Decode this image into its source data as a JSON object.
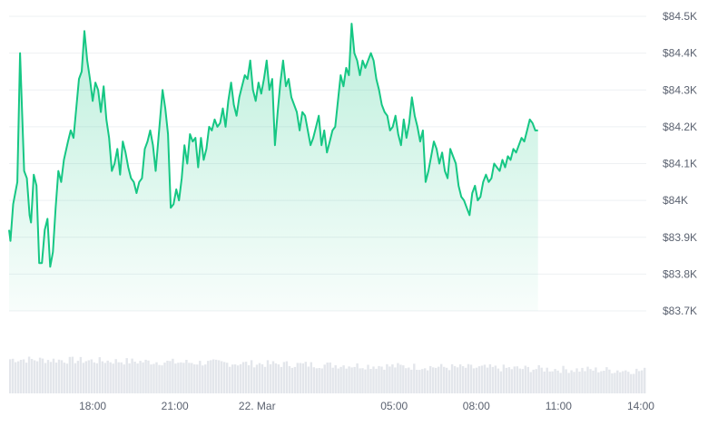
{
  "chart_data": {
    "type": "area",
    "y_axis": {
      "position": "right",
      "range": [
        83.7,
        84.5
      ],
      "unit": "K",
      "ticks": [
        {
          "value": 84.5,
          "label": "$84.5K"
        },
        {
          "value": 84.4,
          "label": "$84.4K"
        },
        {
          "value": 84.3,
          "label": "$84.3K"
        },
        {
          "value": 84.2,
          "label": "$84.2K"
        },
        {
          "value": 84.1,
          "label": "$84.1K"
        },
        {
          "value": 84.0,
          "label": "$84K"
        },
        {
          "value": 83.9,
          "label": "$83.9K"
        },
        {
          "value": 83.8,
          "label": "$83.8K"
        },
        {
          "value": 83.7,
          "label": "$83.7K"
        }
      ]
    },
    "x_axis": {
      "range_hours": [
        14.95,
        38.2
      ],
      "ticks": [
        {
          "hour": 18,
          "label": "18:00"
        },
        {
          "hour": 21,
          "label": "21:00"
        },
        {
          "hour": 24,
          "label": "22. Mar"
        },
        {
          "hour": 29,
          "label": "05:00"
        },
        {
          "hour": 32,
          "label": "08:00"
        },
        {
          "hour": 35,
          "label": "11:00"
        },
        {
          "hour": 38,
          "label": "14:00"
        }
      ]
    },
    "grid": true,
    "line_color": "#16c784",
    "price_series": [
      [
        14.95,
        83.92
      ],
      [
        15.0,
        83.89
      ],
      [
        15.1,
        83.99
      ],
      [
        15.25,
        84.05
      ],
      [
        15.35,
        84.4
      ],
      [
        15.5,
        84.08
      ],
      [
        15.6,
        84.06
      ],
      [
        15.7,
        83.96
      ],
      [
        15.75,
        83.94
      ],
      [
        15.85,
        84.07
      ],
      [
        15.95,
        84.04
      ],
      [
        16.05,
        83.83
      ],
      [
        16.15,
        83.83
      ],
      [
        16.25,
        83.92
      ],
      [
        16.35,
        83.95
      ],
      [
        16.45,
        83.82
      ],
      [
        16.55,
        83.86
      ],
      [
        16.65,
        83.98
      ],
      [
        16.75,
        84.08
      ],
      [
        16.85,
        84.05
      ],
      [
        16.95,
        84.11
      ],
      [
        17.1,
        84.16
      ],
      [
        17.2,
        84.19
      ],
      [
        17.3,
        84.17
      ],
      [
        17.4,
        84.25
      ],
      [
        17.5,
        84.33
      ],
      [
        17.6,
        84.35
      ],
      [
        17.7,
        84.46
      ],
      [
        17.8,
        84.38
      ],
      [
        17.9,
        84.33
      ],
      [
        18.0,
        84.27
      ],
      [
        18.1,
        84.32
      ],
      [
        18.2,
        84.3
      ],
      [
        18.3,
        84.24
      ],
      [
        18.4,
        84.31
      ],
      [
        18.5,
        84.22
      ],
      [
        18.6,
        84.17
      ],
      [
        18.7,
        84.08
      ],
      [
        18.8,
        84.1
      ],
      [
        18.9,
        84.14
      ],
      [
        19.0,
        84.07
      ],
      [
        19.1,
        84.16
      ],
      [
        19.2,
        84.13
      ],
      [
        19.3,
        84.09
      ],
      [
        19.4,
        84.06
      ],
      [
        19.5,
        84.05
      ],
      [
        19.6,
        84.02
      ],
      [
        19.7,
        84.05
      ],
      [
        19.8,
        84.06
      ],
      [
        19.9,
        84.14
      ],
      [
        20.0,
        84.16
      ],
      [
        20.1,
        84.19
      ],
      [
        20.2,
        84.15
      ],
      [
        20.3,
        84.08
      ],
      [
        20.4,
        84.17
      ],
      [
        20.55,
        84.3
      ],
      [
        20.65,
        84.25
      ],
      [
        20.75,
        84.18
      ],
      [
        20.85,
        83.98
      ],
      [
        20.95,
        83.99
      ],
      [
        21.05,
        84.03
      ],
      [
        21.15,
        84.0
      ],
      [
        21.25,
        84.06
      ],
      [
        21.35,
        84.15
      ],
      [
        21.45,
        84.1
      ],
      [
        21.55,
        84.18
      ],
      [
        21.65,
        84.16
      ],
      [
        21.75,
        84.17
      ],
      [
        21.85,
        84.09
      ],
      [
        21.95,
        84.17
      ],
      [
        22.05,
        84.11
      ],
      [
        22.15,
        84.14
      ],
      [
        22.25,
        84.2
      ],
      [
        22.35,
        84.19
      ],
      [
        22.45,
        84.22
      ],
      [
        22.55,
        84.2
      ],
      [
        22.65,
        84.21
      ],
      [
        22.75,
        84.25
      ],
      [
        22.85,
        84.2
      ],
      [
        22.95,
        84.27
      ],
      [
        23.05,
        84.32
      ],
      [
        23.15,
        84.26
      ],
      [
        23.25,
        84.23
      ],
      [
        23.35,
        84.28
      ],
      [
        23.45,
        84.31
      ],
      [
        23.55,
        84.34
      ],
      [
        23.65,
        84.33
      ],
      [
        23.75,
        84.38
      ],
      [
        23.85,
        84.3
      ],
      [
        23.95,
        84.27
      ],
      [
        24.05,
        84.32
      ],
      [
        24.15,
        84.29
      ],
      [
        24.25,
        84.33
      ],
      [
        24.35,
        84.38
      ],
      [
        24.45,
        84.3
      ],
      [
        24.55,
        84.33
      ],
      [
        24.65,
        84.15
      ],
      [
        24.75,
        84.24
      ],
      [
        24.85,
        84.32
      ],
      [
        24.95,
        84.38
      ],
      [
        25.05,
        84.31
      ],
      [
        25.15,
        84.33
      ],
      [
        25.25,
        84.28
      ],
      [
        25.35,
        84.26
      ],
      [
        25.45,
        84.24
      ],
      [
        25.55,
        84.19
      ],
      [
        25.65,
        84.24
      ],
      [
        25.75,
        84.23
      ],
      [
        25.85,
        84.19
      ],
      [
        25.95,
        84.15
      ],
      [
        26.05,
        84.17
      ],
      [
        26.15,
        84.2
      ],
      [
        26.25,
        84.23
      ],
      [
        26.35,
        84.15
      ],
      [
        26.45,
        84.19
      ],
      [
        26.55,
        84.13
      ],
      [
        26.65,
        84.16
      ],
      [
        26.75,
        84.19
      ],
      [
        26.85,
        84.2
      ],
      [
        26.95,
        84.27
      ],
      [
        27.05,
        84.34
      ],
      [
        27.15,
        84.31
      ],
      [
        27.25,
        84.36
      ],
      [
        27.35,
        84.34
      ],
      [
        27.45,
        84.48
      ],
      [
        27.55,
        84.4
      ],
      [
        27.65,
        84.38
      ],
      [
        27.75,
        84.34
      ],
      [
        27.85,
        84.38
      ],
      [
        27.95,
        84.36
      ],
      [
        28.05,
        84.38
      ],
      [
        28.15,
        84.4
      ],
      [
        28.25,
        84.38
      ],
      [
        28.35,
        84.33
      ],
      [
        28.45,
        84.3
      ],
      [
        28.55,
        84.26
      ],
      [
        28.65,
        84.24
      ],
      [
        28.75,
        84.23
      ],
      [
        28.85,
        84.19
      ],
      [
        28.95,
        84.2
      ],
      [
        29.05,
        84.23
      ],
      [
        29.15,
        84.18
      ],
      [
        29.25,
        84.15
      ],
      [
        29.35,
        84.22
      ],
      [
        29.45,
        84.17
      ],
      [
        29.55,
        84.21
      ],
      [
        29.65,
        84.28
      ],
      [
        29.75,
        84.23
      ],
      [
        29.85,
        84.2
      ],
      [
        29.95,
        84.16
      ],
      [
        30.05,
        84.19
      ],
      [
        30.15,
        84.05
      ],
      [
        30.25,
        84.08
      ],
      [
        30.35,
        84.12
      ],
      [
        30.45,
        84.16
      ],
      [
        30.55,
        84.14
      ],
      [
        30.65,
        84.1
      ],
      [
        30.75,
        84.13
      ],
      [
        30.85,
        84.08
      ],
      [
        30.95,
        84.06
      ],
      [
        31.05,
        84.14
      ],
      [
        31.15,
        84.12
      ],
      [
        31.25,
        84.1
      ],
      [
        31.35,
        84.04
      ],
      [
        31.45,
        84.01
      ],
      [
        31.55,
        84.0
      ],
      [
        31.65,
        83.98
      ],
      [
        31.75,
        83.96
      ],
      [
        31.85,
        84.02
      ],
      [
        31.95,
        84.04
      ],
      [
        32.05,
        84.0
      ],
      [
        32.15,
        84.01
      ],
      [
        32.25,
        84.05
      ],
      [
        32.35,
        84.07
      ],
      [
        32.45,
        84.05
      ],
      [
        32.55,
        84.06
      ],
      [
        32.65,
        84.1
      ],
      [
        32.75,
        84.09
      ],
      [
        32.85,
        84.08
      ],
      [
        32.95,
        84.11
      ],
      [
        33.05,
        84.09
      ],
      [
        33.15,
        84.12
      ],
      [
        33.25,
        84.11
      ],
      [
        33.35,
        84.14
      ],
      [
        33.45,
        84.13
      ],
      [
        33.55,
        84.15
      ],
      [
        33.65,
        84.17
      ],
      [
        33.75,
        84.16
      ],
      [
        33.85,
        84.19
      ],
      [
        33.95,
        84.22
      ],
      [
        34.05,
        84.21
      ],
      [
        34.15,
        84.19
      ],
      [
        34.25,
        84.19
      ]
    ],
    "volume_series_relative": "bars across full width, roughly flat with slight decline toward the right"
  }
}
